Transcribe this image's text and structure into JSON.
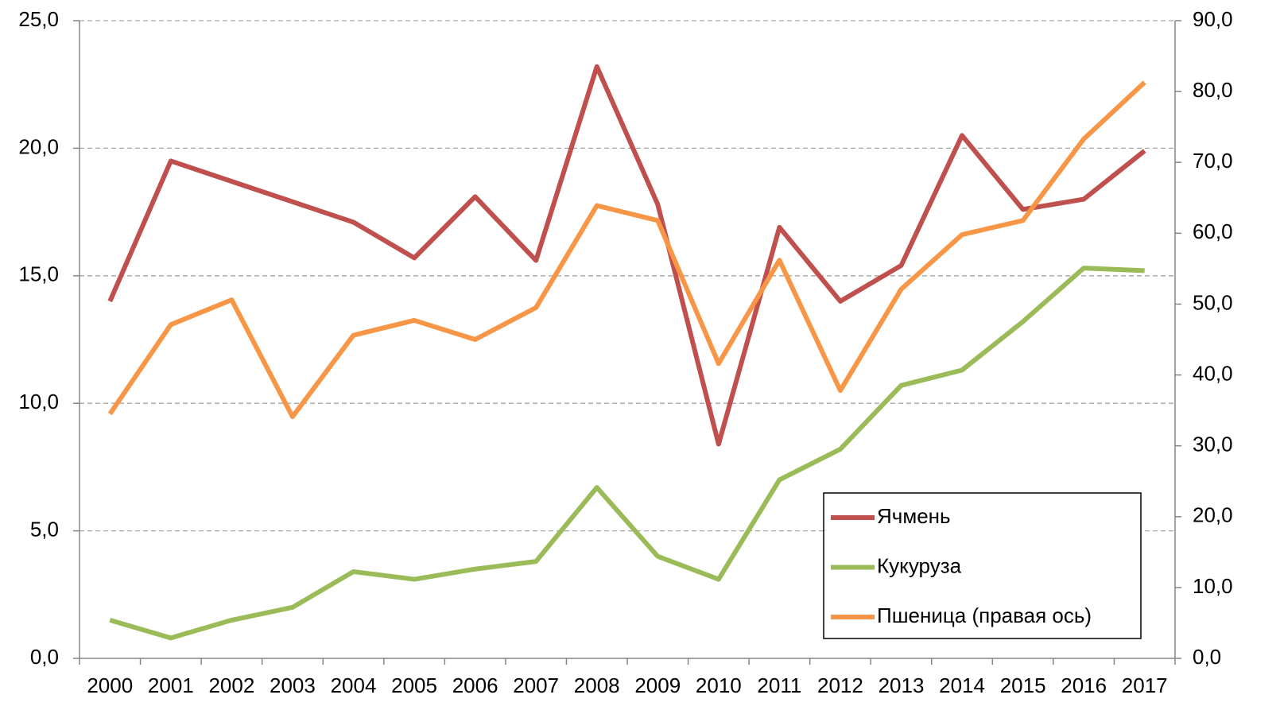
{
  "chart_data": {
    "type": "line",
    "categories": [
      "2000",
      "2001",
      "2002",
      "2003",
      "2004",
      "2005",
      "2006",
      "2007",
      "2008",
      "2009",
      "2010",
      "2011",
      "2012",
      "2013",
      "2014",
      "2015",
      "2016",
      "2017"
    ],
    "series": [
      {
        "name": "Ячмень",
        "color": "#c0504d",
        "values": [
          14.0,
          19.5,
          18.7,
          17.9,
          17.1,
          15.7,
          18.1,
          15.6,
          23.2,
          17.8,
          8.4,
          16.9,
          14.0,
          15.4,
          20.5,
          17.6,
          18.0,
          19.9
        ]
      },
      {
        "name": "Кукуруза",
        "color": "#9bbb59",
        "values": [
          1.5,
          0.8,
          1.5,
          2.0,
          3.4,
          3.1,
          3.5,
          3.8,
          6.7,
          4.0,
          3.1,
          7.0,
          8.2,
          10.7,
          11.3,
          13.2,
          15.3,
          15.2
        ]
      },
      {
        "name": "Пшеница (правая ось)",
        "color": "#f79646",
        "axis": "y2",
        "values": [
          34.5,
          47.1,
          50.6,
          34.1,
          45.6,
          47.7,
          45.0,
          49.5,
          63.9,
          61.8,
          41.6,
          56.2,
          37.8,
          52.1,
          59.8,
          61.8,
          73.3,
          81.3
        ]
      }
    ],
    "ylim": [
      0,
      25
    ],
    "yticks": [
      {
        "value": 0,
        "label": "0,0"
      },
      {
        "value": 5,
        "label": "5,0"
      },
      {
        "value": 10,
        "label": "10,0"
      },
      {
        "value": 15,
        "label": "15,0"
      },
      {
        "value": 20,
        "label": "20,0"
      },
      {
        "value": 25,
        "label": "25,0"
      }
    ],
    "y2lim": [
      0,
      90
    ],
    "y2ticks": [
      {
        "value": 0,
        "label": "0,0"
      },
      {
        "value": 10,
        "label": "10,0"
      },
      {
        "value": 20,
        "label": "20,0"
      },
      {
        "value": 30,
        "label": "30,0"
      },
      {
        "value": 40,
        "label": "40,0"
      },
      {
        "value": 50,
        "label": "50,0"
      },
      {
        "value": 60,
        "label": "60,0"
      },
      {
        "value": 70,
        "label": "70,0"
      },
      {
        "value": 80,
        "label": "80,0"
      },
      {
        "value": 90,
        "label": "90,0"
      }
    ],
    "grid": true,
    "legend": "lower right"
  }
}
